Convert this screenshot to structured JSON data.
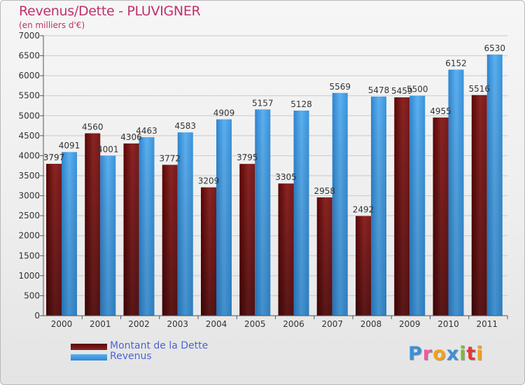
{
  "header": {
    "title": "Revenus/Dette - PLUVIGNER",
    "subtitle": "(en milliers d'€)"
  },
  "legend": {
    "dette_label": "Montant de la Dette",
    "revenus_label": "Revenus"
  },
  "brand": {
    "letters": [
      "P",
      "r",
      "o",
      "x",
      "i",
      "t",
      "i"
    ],
    "colors": [
      "#3f8fd6",
      "#e85b9f",
      "#f3a21a",
      "#3f8fd6",
      "#7dbb3a",
      "#e53935",
      "#f3a21a"
    ]
  },
  "colors": {
    "dette": "#6e0d0d",
    "revenus": "#4ea2e6",
    "title": "#c0306a",
    "legend_text": "#4a64d6"
  },
  "chart_data": {
    "type": "bar",
    "title": "Revenus/Dette - PLUVIGNER",
    "ylabel": "(en milliers d'€)",
    "xlabel": "",
    "ylim": [
      0,
      7000
    ],
    "yticks": [
      0,
      500,
      1000,
      1500,
      2000,
      2500,
      3000,
      3500,
      4000,
      4500,
      5000,
      5500,
      6000,
      6500,
      7000
    ],
    "grid": true,
    "legend_position": "bottom-left",
    "categories": [
      "2000",
      "2001",
      "2002",
      "2003",
      "2004",
      "2005",
      "2006",
      "2007",
      "2008",
      "2009",
      "2010",
      "2011"
    ],
    "series": [
      {
        "name": "Montant de la Dette",
        "values": [
          3797,
          4560,
          4306,
          3772,
          3209,
          3795,
          3305,
          2958,
          2492,
          5459,
          4955,
          5516
        ],
        "labels": [
          "3797",
          "4560",
          "4306",
          "3772",
          "3209",
          "3795",
          "3305",
          "2958",
          "2492",
          "5459",
          "4955",
          "5516"
        ]
      },
      {
        "name": "Revenus",
        "values": [
          4091,
          4001,
          4463,
          4583,
          4909,
          5157,
          5128,
          5569,
          5478,
          5500,
          6152,
          6530
        ],
        "labels": [
          "4091",
          "4001",
          "4463",
          "4583",
          "4909",
          "5157",
          "5128",
          "5569",
          "5478",
          "5500",
          "6152",
          "6530"
        ]
      }
    ]
  }
}
